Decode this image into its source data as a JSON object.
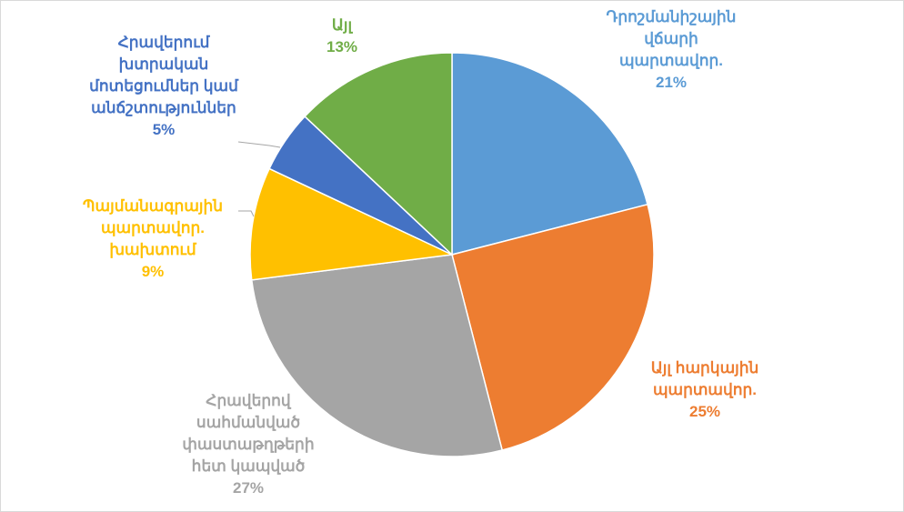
{
  "chart_data": {
    "type": "pie",
    "title": "",
    "slices": [
      {
        "label": "Դրոշմանիշային վճարի պարտավոր.",
        "value": 21,
        "value_label": "21%",
        "color": "#5B9BD5",
        "label_lines": [
          "Դրոշմանիշային",
          "վճարի",
          "պարտավոր."
        ]
      },
      {
        "label": "Այլ հարկային պարտավոր.",
        "value": 25,
        "value_label": "25%",
        "color": "#ED7D31",
        "label_lines": [
          "Այլ հարկային",
          "պարտավոր."
        ]
      },
      {
        "label": "Հրավերով սահմանված փաստաթղթերի հետ կապված",
        "value": 27,
        "value_label": "27%",
        "color": "#A5A5A5",
        "label_lines": [
          "Հրավերով",
          "սահմանված",
          "փաստաթղթերի",
          "հետ կապված"
        ]
      },
      {
        "label": "Պայմանագրային պարտավոր. խախտում",
        "value": 9,
        "value_label": "9%",
        "color": "#FFC000",
        "label_lines": [
          "Պայմանագրային",
          "պարտավոր.",
          "խախտում"
        ]
      },
      {
        "label": "Հրավերում խտրական մոտեցումներ կամ անճշտություններ",
        "value": 5,
        "value_label": "5%",
        "color": "#4472C4",
        "label_lines": [
          "Հրավերում",
          "խտրական",
          "մոտեցումներ կամ",
          "անճշտություններ"
        ]
      },
      {
        "label": "Այլ",
        "value": 13,
        "value_label": "13%",
        "color": "#70AD47",
        "label_lines": [
          "Այլ"
        ]
      }
    ]
  }
}
